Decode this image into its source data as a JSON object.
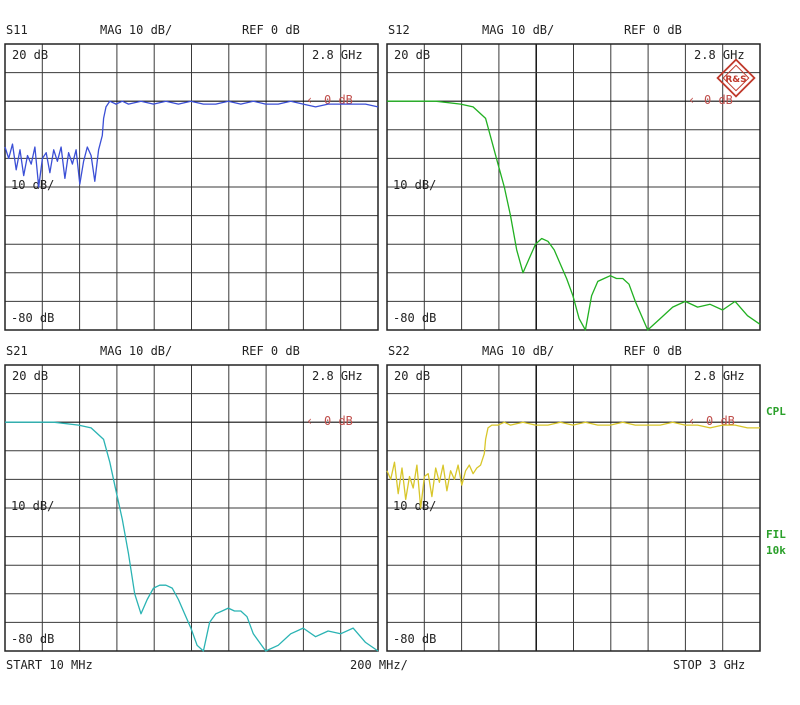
{
  "colors": {
    "S11": "#3b4fd6",
    "S12": "#21b021",
    "S21": "#2ab3b3",
    "S22": "#d8c62a",
    "ref_marker": "#c0504d",
    "side_labels": "#2aa02a",
    "logo": "#c0392b"
  },
  "logo": {
    "text": "R&S"
  },
  "side_labels": {
    "cpl": "CPL",
    "fil": "FIL",
    "bw": "10k"
  },
  "footer": {
    "start": "START  10 MHz",
    "span": "200 MHz/",
    "stop": "STOP 3 GHz"
  },
  "chart_data": [
    {
      "type": "line",
      "title": "S11",
      "scale": "MAG 10 dB/",
      "ref": "REF 0 dB",
      "top_label": "20 dB",
      "mid_label": "10 dB/",
      "bottom_label": "-80 dB",
      "marker_freq": "2.8 GHz",
      "ref_marker": "0 dB",
      "xlim": [
        10,
        3000
      ],
      "ylim": [
        -80,
        20
      ],
      "series": [
        {
          "values_x": [
            10,
            40,
            70,
            100,
            130,
            160,
            190,
            220,
            250,
            280,
            310,
            340,
            370,
            400,
            430,
            460,
            490,
            520,
            550,
            580,
            610,
            640,
            670,
            700,
            730,
            760,
            790,
            800,
            820,
            850,
            900,
            950,
            1000,
            1100,
            1200,
            1300,
            1400,
            1500,
            1600,
            1700,
            1800,
            1900,
            2000,
            2100,
            2200,
            2300,
            2400,
            2500,
            2600,
            2700,
            2800,
            2900,
            3000
          ],
          "values_y": [
            -16,
            -20,
            -15,
            -24,
            -17,
            -26,
            -19,
            -22,
            -16,
            -30,
            -20,
            -18,
            -25,
            -17,
            -21,
            -16,
            -27,
            -18,
            -22,
            -17,
            -29,
            -21,
            -16,
            -19,
            -28,
            -17,
            -12,
            -6,
            -2,
            0,
            -1,
            0,
            -1,
            0,
            -1,
            0,
            -1,
            0,
            -1,
            -1,
            0,
            -1,
            0,
            -1,
            -1,
            0,
            -1,
            -2,
            -1,
            -1,
            -1,
            -1,
            -2
          ]
        }
      ]
    },
    {
      "type": "line",
      "title": "S12",
      "scale": "MAG 10 dB/",
      "ref": "REF 0 dB",
      "top_label": "20 dB",
      "mid_label": "10 dB/",
      "bottom_label": "-80 dB",
      "marker_freq": "2.8 GHz",
      "ref_marker": "0 dB",
      "xlim": [
        10,
        3000
      ],
      "ylim": [
        -80,
        20
      ],
      "series": [
        {
          "values_x": [
            10,
            200,
            400,
            600,
            700,
            800,
            850,
            900,
            950,
            1000,
            1050,
            1100,
            1150,
            1200,
            1250,
            1300,
            1350,
            1400,
            1450,
            1500,
            1550,
            1600,
            1650,
            1700,
            1750,
            1800,
            1850,
            1900,
            1950,
            2000,
            2100,
            2200,
            2300,
            2400,
            2500,
            2600,
            2700,
            2800,
            2900,
            3000
          ],
          "values_y": [
            0,
            0,
            0,
            -1,
            -2,
            -6,
            -14,
            -22,
            -30,
            -40,
            -52,
            -60,
            -55,
            -50,
            -48,
            -49,
            -52,
            -57,
            -62,
            -68,
            -76,
            -84,
            -68,
            -63,
            -62,
            -61,
            -62,
            -62,
            -64,
            -70,
            -80,
            -76,
            -72,
            -70,
            -72,
            -71,
            -73,
            -70,
            -75,
            -78
          ]
        }
      ]
    },
    {
      "type": "line",
      "title": "S21",
      "scale": "MAG 10 dB/",
      "ref": "REF 0 dB",
      "top_label": "20 dB",
      "mid_label": "10 dB/",
      "bottom_label": "-80 dB",
      "marker_freq": "2.8 GHz",
      "ref_marker": "0 dB",
      "xlim": [
        10,
        3000
      ],
      "ylim": [
        -80,
        20
      ],
      "series": [
        {
          "values_x": [
            10,
            200,
            400,
            600,
            700,
            800,
            850,
            900,
            950,
            1000,
            1050,
            1100,
            1150,
            1200,
            1250,
            1300,
            1350,
            1400,
            1450,
            1500,
            1550,
            1600,
            1650,
            1700,
            1750,
            1800,
            1850,
            1900,
            1950,
            2000,
            2100,
            2200,
            2300,
            2400,
            2500,
            2600,
            2700,
            2800,
            2900,
            3000
          ],
          "values_y": [
            0,
            0,
            0,
            -1,
            -2,
            -6,
            -14,
            -24,
            -34,
            -46,
            -60,
            -67,
            -62,
            -58,
            -57,
            -57,
            -58,
            -62,
            -67,
            -72,
            -78,
            -86,
            -70,
            -67,
            -66,
            -65,
            -66,
            -66,
            -68,
            -74,
            -84,
            -78,
            -74,
            -72,
            -75,
            -73,
            -74,
            -72,
            -77,
            -82
          ]
        }
      ]
    },
    {
      "type": "line",
      "title": "S22",
      "scale": "MAG 10 dB/",
      "ref": "REF 0 dB",
      "top_label": "20 dB",
      "mid_label": "10 dB/",
      "bottom_label": "-80 dB",
      "marker_freq": "2.8 GHz",
      "ref_marker": "0 dB",
      "xlim": [
        10,
        3000
      ],
      "ylim": [
        -80,
        20
      ],
      "series": [
        {
          "values_x": [
            10,
            40,
            70,
            100,
            130,
            160,
            190,
            220,
            250,
            280,
            310,
            340,
            370,
            400,
            430,
            460,
            490,
            520,
            550,
            580,
            610,
            640,
            670,
            700,
            730,
            760,
            790,
            800,
            820,
            850,
            900,
            950,
            1000,
            1100,
            1200,
            1300,
            1400,
            1500,
            1600,
            1700,
            1800,
            1900,
            2000,
            2100,
            2200,
            2300,
            2400,
            2500,
            2600,
            2700,
            2800,
            2900,
            3000
          ],
          "values_y": [
            -17,
            -20,
            -14,
            -25,
            -16,
            -27,
            -19,
            -23,
            -15,
            -30,
            -19,
            -18,
            -26,
            -16,
            -21,
            -15,
            -24,
            -17,
            -20,
            -15,
            -22,
            -17,
            -15,
            -18,
            -16,
            -15,
            -11,
            -6,
            -2,
            -1,
            -1,
            0,
            -1,
            0,
            -1,
            -1,
            0,
            -1,
            0,
            -1,
            -1,
            0,
            -1,
            -1,
            -1,
            0,
            -1,
            -1,
            -2,
            -1,
            -1,
            -2,
            -2
          ]
        }
      ]
    }
  ]
}
